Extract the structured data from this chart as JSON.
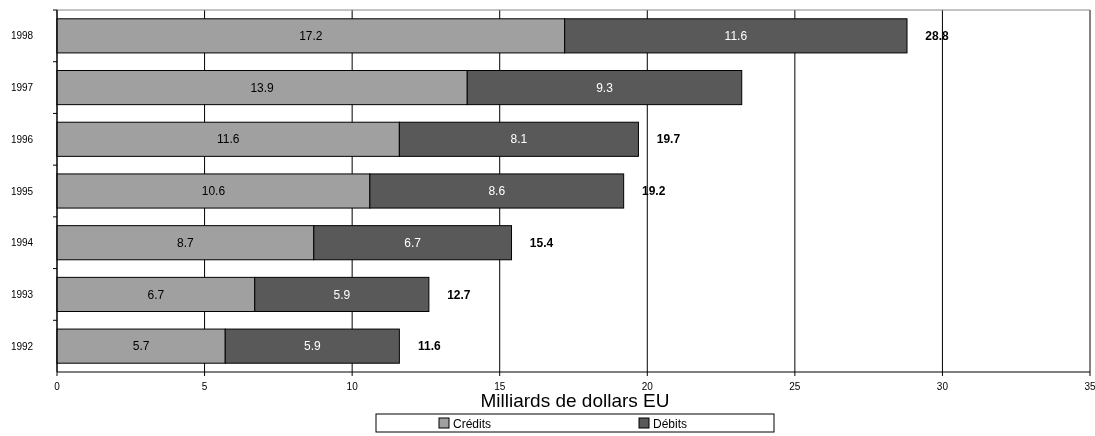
{
  "chart_data": {
    "type": "bar",
    "orientation": "horizontal",
    "stacked": true,
    "xlabel": "Milliards de dollars EU",
    "categories": [
      "1998",
      "1997",
      "1996",
      "1995",
      "1994",
      "1993",
      "1992"
    ],
    "series": [
      {
        "name": "Crédits",
        "color": "#a0a0a0",
        "values": [
          17.2,
          13.9,
          11.6,
          10.6,
          8.7,
          6.7,
          5.7
        ]
      },
      {
        "name": "Débits",
        "color": "#595959",
        "values": [
          11.6,
          9.3,
          8.1,
          8.6,
          6.7,
          5.9,
          5.9
        ]
      }
    ],
    "totals": [
      "28.8",
      null,
      "19.7",
      "19.2",
      "15.4",
      "12.7",
      "11.6"
    ],
    "data_labels": true,
    "xlim": [
      0,
      35
    ],
    "xticks": [
      0,
      5,
      10,
      15,
      20,
      25,
      30,
      35
    ],
    "grid": "x",
    "legend": "bottom"
  }
}
